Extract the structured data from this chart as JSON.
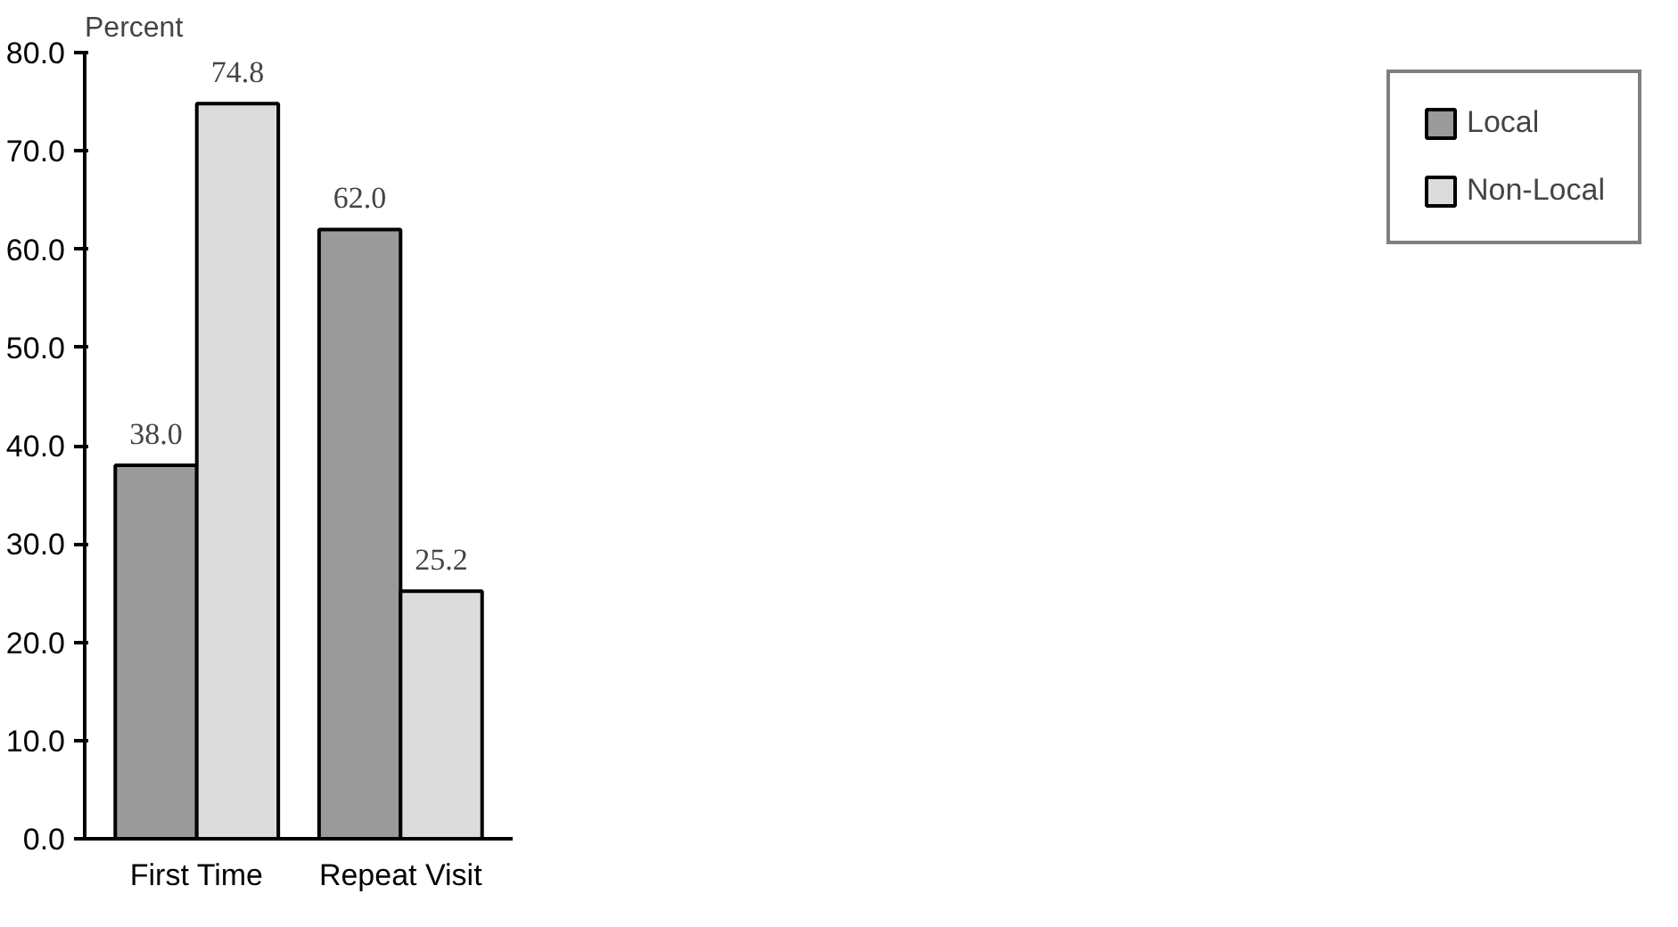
{
  "chart_data": {
    "type": "bar",
    "ylabel": "Percent",
    "categories": [
      "First Time",
      "Repeat Visit"
    ],
    "series": [
      {
        "name": "Local",
        "color": "#9a9a9a",
        "values": [
          38.0,
          62.0
        ],
        "value_labels": [
          "38.0",
          "62.0"
        ]
      },
      {
        "name": "Non-Local",
        "color": "#dcdcdc",
        "values": [
          74.8,
          25.2
        ],
        "value_labels": [
          "74.8",
          "25.2"
        ]
      }
    ],
    "ylim": [
      0,
      80
    ],
    "yticks": [
      {
        "value": 0,
        "label": "0.0"
      },
      {
        "value": 10,
        "label": "10.0"
      },
      {
        "value": 20,
        "label": "20.0"
      },
      {
        "value": 30,
        "label": "30.0"
      },
      {
        "value": 40,
        "label": "40.0"
      },
      {
        "value": 50,
        "label": "50.0"
      },
      {
        "value": 60,
        "label": "60.0"
      },
      {
        "value": 70,
        "label": "70.0"
      },
      {
        "value": 80,
        "label": "80.0"
      }
    ],
    "grid": false,
    "legend": "right"
  }
}
